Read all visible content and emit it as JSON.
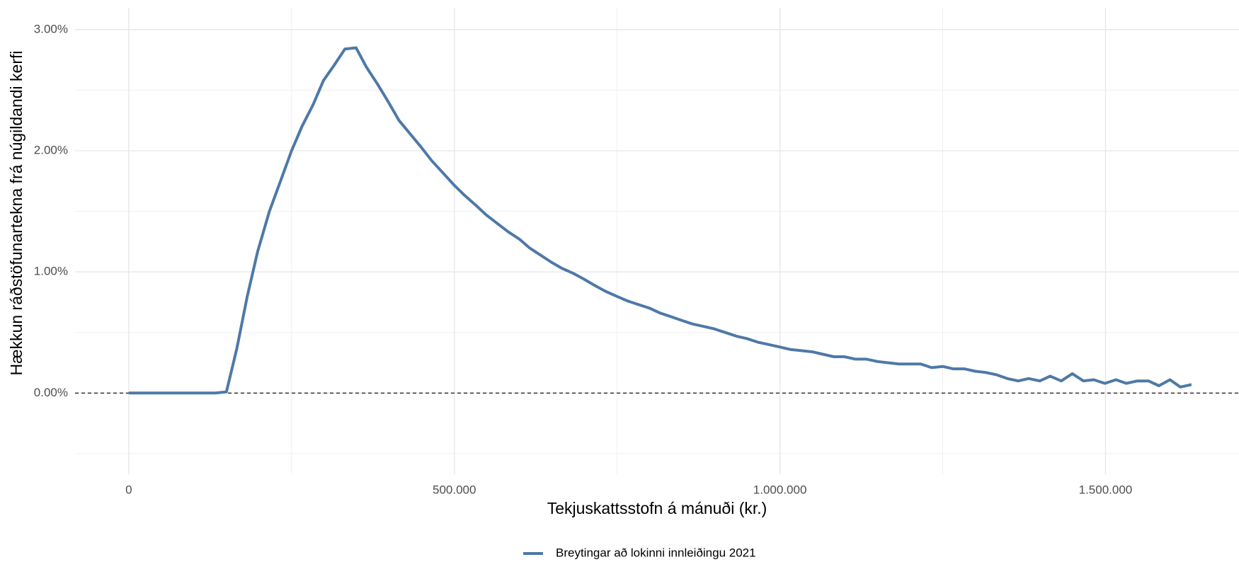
{
  "chart_data": {
    "type": "line",
    "x_label": "Tekjuskattsstofn á mánuði (kr.)",
    "y_label": "Hækkun ráðstöfunartekna frá núgildandi kerfi",
    "x": [
      0,
      16600,
      33200,
      49800,
      66400,
      83000,
      99600,
      116200,
      133000,
      150000,
      166000,
      182000,
      198000,
      216000,
      233000,
      250000,
      266000,
      283000,
      299000,
      316000,
      332000,
      349000,
      365000,
      382000,
      399000,
      415000,
      432000,
      449000,
      465000,
      482000,
      499000,
      516000,
      533000,
      549000,
      566000,
      583000,
      600000,
      615000,
      632000,
      649000,
      665000,
      682000,
      699000,
      715000,
      732000,
      749000,
      766000,
      783000,
      800000,
      816000,
      833000,
      849000,
      866000,
      883000,
      899000,
      916000,
      933000,
      949000,
      966000,
      983000,
      1000000,
      1016000,
      1033000,
      1050000,
      1066000,
      1083000,
      1099000,
      1116000,
      1133000,
      1150000,
      1166000,
      1183000,
      1199000,
      1216000,
      1233000,
      1250000,
      1266000,
      1283000,
      1300000,
      1316000,
      1333000,
      1349000,
      1366000,
      1382000,
      1399000,
      1415000,
      1432000,
      1449000,
      1466000,
      1482000,
      1499000,
      1516000,
      1532000,
      1549000,
      1566000,
      1582000,
      1599000,
      1615000,
      1632000
    ],
    "series": [
      {
        "name": "Breytingar að lokinni innleiðingu 2021",
        "color": "#4e79a7",
        "values": [
          0,
          0,
          0,
          0,
          0,
          0,
          0,
          0,
          0,
          0.01,
          0.37,
          0.8,
          1.17,
          1.5,
          1.75,
          2.0,
          2.2,
          2.38,
          2.58,
          2.71,
          2.84,
          2.85,
          2.69,
          2.55,
          2.4,
          2.25,
          2.14,
          2.03,
          1.92,
          1.82,
          1.72,
          1.63,
          1.55,
          1.47,
          1.4,
          1.33,
          1.27,
          1.2,
          1.14,
          1.08,
          1.03,
          0.99,
          0.94,
          0.89,
          0.84,
          0.8,
          0.76,
          0.73,
          0.7,
          0.66,
          0.63,
          0.6,
          0.57,
          0.55,
          0.53,
          0.5,
          0.47,
          0.45,
          0.42,
          0.4,
          0.38,
          0.36,
          0.35,
          0.34,
          0.32,
          0.3,
          0.3,
          0.28,
          0.28,
          0.26,
          0.25,
          0.24,
          0.24,
          0.24,
          0.21,
          0.22,
          0.2,
          0.2,
          0.18,
          0.17,
          0.15,
          0.12,
          0.1,
          0.12,
          0.1,
          0.14,
          0.1,
          0.16,
          0.1,
          0.11,
          0.08,
          0.11,
          0.08,
          0.1,
          0.1,
          0.06,
          0.11,
          0.05,
          0.07
        ]
      }
    ],
    "xlim": [
      -82500,
      1705000
    ],
    "xticks": [
      0,
      {
        "value": 500000,
        "label": "500.000"
      },
      {
        "value": 1000000,
        "label": "1.000.000"
      },
      {
        "value": 1500000,
        "label": "1.500.000"
      }
    ],
    "xminor": [
      250000,
      750000,
      1250000
    ],
    "ylim": [
      -0.67,
      3.18
    ],
    "yticks": [
      {
        "value": 0,
        "label": "0.00%"
      },
      {
        "value": 1,
        "label": "1.00%"
      },
      {
        "value": 2,
        "label": "2.00%"
      },
      {
        "value": 3,
        "label": "3.00%"
      }
    ],
    "yminor": [
      -0.5,
      0.5,
      1.5,
      2.5
    ],
    "reference_line": 0,
    "grid": true,
    "legend": "bottom"
  }
}
